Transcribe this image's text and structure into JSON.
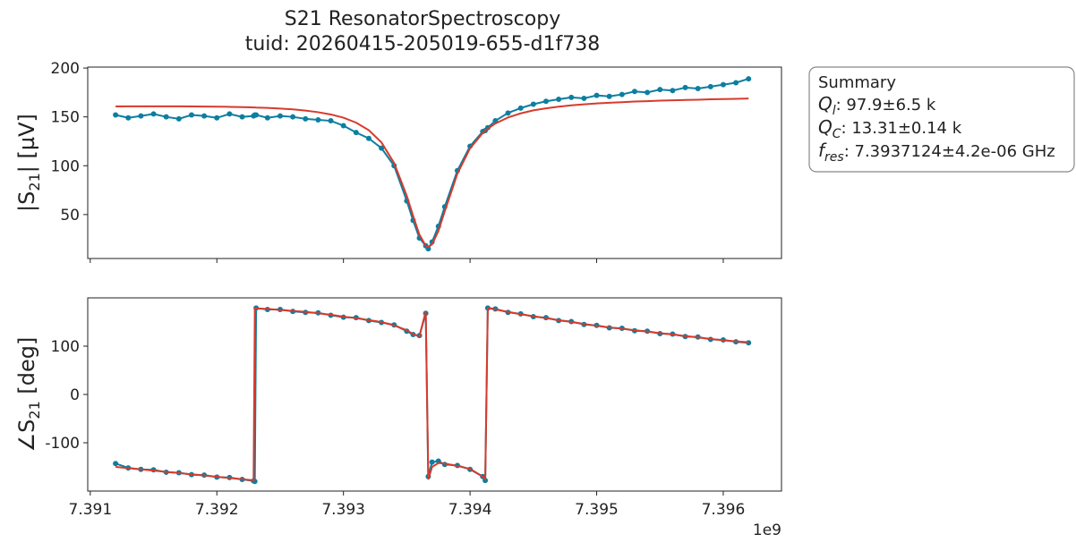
{
  "figure_title": [
    "S21 ResonatorSpectroscopy",
    "tuid: 20260415-205019-655-d1f738"
  ],
  "summary": {
    "title": "Summary",
    "lines": [
      [
        "Q",
        "l",
        ": 97.9±6.5 k"
      ],
      [
        "Q",
        "C",
        ": 13.31±0.14 k"
      ],
      [
        "f",
        "res",
        ": 7.3937124±4.2e-06 GHz"
      ]
    ]
  },
  "chart_data": [
    {
      "type": "line",
      "ylabel": [
        "|S",
        "21",
        "| [µV]"
      ],
      "x": [
        7391200000,
        7391300000,
        7391400000,
        7391500000,
        7391600000,
        7391700000,
        7391800000,
        7391900000,
        7392000000,
        7392100000,
        7392200000,
        7392290000,
        7392300000,
        7392310000,
        7392400000,
        7392500000,
        7392600000,
        7392700000,
        7392800000,
        7392900000,
        7393000000,
        7393100000,
        7393200000,
        7393300000,
        7393400000,
        7393500000,
        7393550000,
        7393600000,
        7393650000,
        7393670000,
        7393700000,
        7393750000,
        7393800000,
        7393900000,
        7394000000,
        7394100000,
        7394120000,
        7394140000,
        7394200000,
        7394300000,
        7394400000,
        7394500000,
        7394600000,
        7394700000,
        7394800000,
        7394900000,
        7395000000,
        7395100000,
        7395200000,
        7395300000,
        7395400000,
        7395500000,
        7395600000,
        7395700000,
        7395800000,
        7395900000,
        7396000000,
        7396100000,
        7396200000
      ],
      "series": [
        {
          "color": "#0c7fa0",
          "marker": true,
          "values": [
            152,
            149,
            151,
            153,
            150,
            148,
            152,
            151,
            149,
            153,
            150,
            151,
            152,
            152,
            149,
            151,
            150,
            148,
            147,
            146,
            141,
            134,
            128,
            118,
            100,
            64,
            44,
            26,
            18,
            15,
            22,
            38,
            58,
            95,
            120,
            135,
            136,
            139,
            146,
            154,
            159,
            163,
            166,
            168,
            170,
            169,
            172,
            171,
            173,
            176,
            175,
            178,
            177,
            180,
            179,
            181,
            183,
            185,
            189
          ]
        },
        {
          "color": "#d83a2c",
          "marker": false,
          "values": [
            160.7,
            160.8,
            160.8,
            160.8,
            160.8,
            160.8,
            160.7,
            160.6,
            160.5,
            160.3,
            160.0,
            159.7,
            159.7,
            159.6,
            159.2,
            158.5,
            157.7,
            156.5,
            154.8,
            152.5,
            149.2,
            144.1,
            136.4,
            123.9,
            102.8,
            69.3,
            48.7,
            29.4,
            18.0,
            16.9,
            19.5,
            33.2,
            53.2,
            91.8,
            117.8,
            133.5,
            135.9,
            137.9,
            143.2,
            149.4,
            153.6,
            156.7,
            158.8,
            160.5,
            161.8,
            162.9,
            163.8,
            164.5,
            165.1,
            165.7,
            166.1,
            166.6,
            167.0,
            167.3,
            167.6,
            168.0,
            168.2,
            168.5,
            168.8
          ]
        }
      ],
      "xlim": [
        7390980000,
        7396460000
      ],
      "ylim": [
        5,
        201
      ],
      "xticks": [
        7391000000,
        7392000000,
        7393000000,
        7394000000,
        7395000000,
        7396000000
      ],
      "yticks": [
        50,
        100,
        150,
        200
      ]
    },
    {
      "type": "line",
      "ylabel": [
        "∠S",
        "21",
        " [deg]"
      ],
      "x_offset_label": "1e9",
      "x": [
        7391200000,
        7391300000,
        7391400000,
        7391500000,
        7391600000,
        7391700000,
        7391800000,
        7391900000,
        7392000000,
        7392100000,
        7392200000,
        7392290000,
        7392300000,
        7392310000,
        7392400000,
        7392500000,
        7392600000,
        7392700000,
        7392800000,
        7392900000,
        7393000000,
        7393100000,
        7393200000,
        7393300000,
        7393400000,
        7393500000,
        7393550000,
        7393600000,
        7393650000,
        7393670000,
        7393700000,
        7393750000,
        7393800000,
        7393900000,
        7394000000,
        7394100000,
        7394120000,
        7394140000,
        7394200000,
        7394300000,
        7394400000,
        7394500000,
        7394600000,
        7394700000,
        7394800000,
        7394900000,
        7395000000,
        7395100000,
        7395200000,
        7395300000,
        7395400000,
        7395500000,
        7395600000,
        7395700000,
        7395800000,
        7395900000,
        7396000000,
        7396100000,
        7396200000
      ],
      "series": [
        {
          "color": "#0c7fa0",
          "marker": true,
          "values": [
            -143,
            -152,
            -155,
            -156,
            -161,
            -162,
            -166,
            -167,
            -171,
            -172,
            -176,
            -179,
            -180,
            179,
            176,
            176,
            172,
            170,
            169,
            164,
            160,
            159,
            153,
            149,
            144,
            131,
            124,
            122,
            168,
            -170,
            -140,
            -138,
            -145,
            -147,
            -155,
            -170,
            -178,
            179,
            177,
            170,
            167,
            161,
            159,
            153,
            151,
            145,
            143,
            138,
            137,
            132,
            131,
            126,
            125,
            120,
            119,
            114,
            113,
            109,
            107
          ]
        },
        {
          "color": "#d83a2c",
          "marker": false,
          "values": [
            -150,
            -152.5,
            -155.1,
            -157.6,
            -160.2,
            -162.7,
            -165.3,
            -167.8,
            -170.4,
            -172.9,
            -175.5,
            -177.7,
            178,
            178,
            177,
            175,
            173,
            171,
            168,
            165,
            161,
            158,
            154,
            150,
            143,
            133,
            125,
            120,
            172,
            -176,
            -150,
            -142,
            -143,
            -148,
            -154,
            -170,
            -176,
            179,
            176,
            171,
            166,
            162,
            158,
            154,
            150,
            146,
            142,
            139,
            136,
            133,
            130,
            127,
            124,
            121,
            118,
            115,
            112,
            110,
            108
          ]
        }
      ],
      "xlim": [
        7390980000,
        7396460000
      ],
      "ylim": [
        -200,
        200
      ],
      "xticks": [
        {
          "value": 7391000000,
          "label": "7.391"
        },
        {
          "value": 7392000000,
          "label": "7.392"
        },
        {
          "value": 7393000000,
          "label": "7.393"
        },
        {
          "value": 7394000000,
          "label": "7.394"
        },
        {
          "value": 7395000000,
          "label": "7.395"
        },
        {
          "value": 7396000000,
          "label": "7.396"
        }
      ],
      "yticks": [
        -100,
        0,
        100
      ]
    }
  ]
}
